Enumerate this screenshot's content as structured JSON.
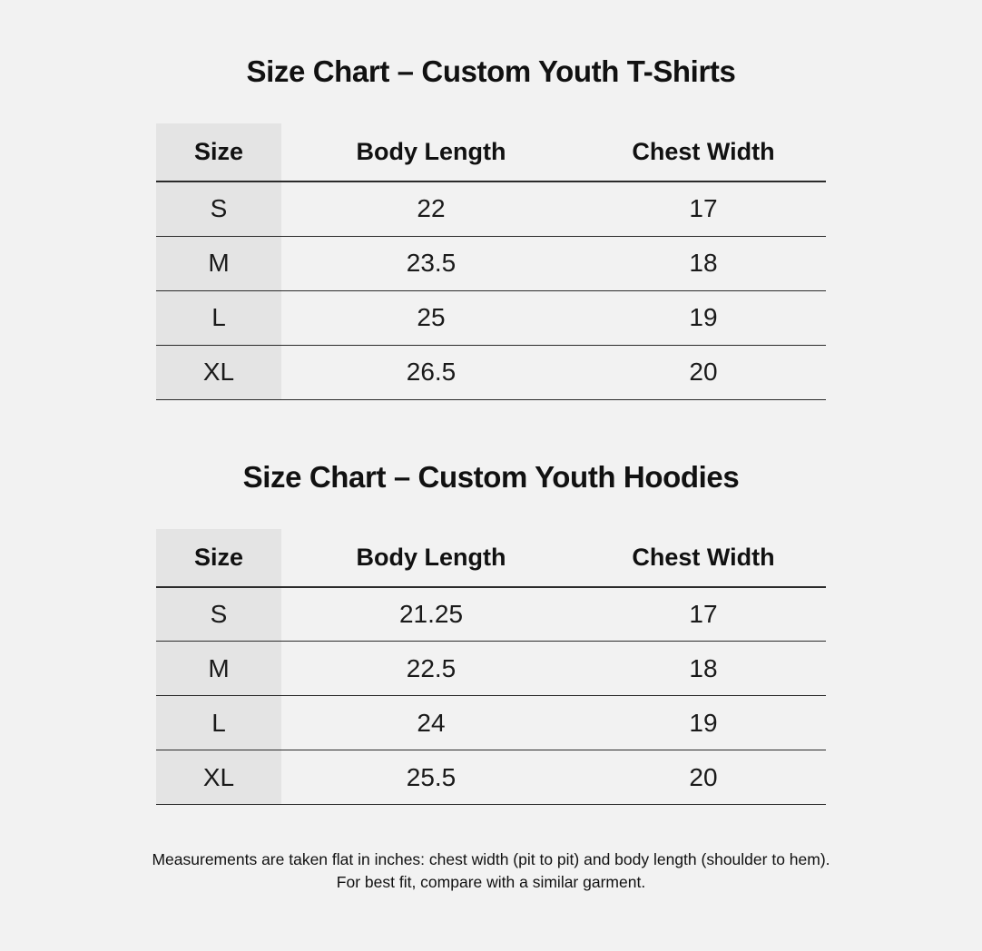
{
  "page": {
    "background_color": "#f2f2f2",
    "size_column_color": "#e4e4e4",
    "border_color": "#2b2b2b",
    "text_color": "#111111"
  },
  "footnote": {
    "line1": "Measurements are taken flat in inches: chest width (pit to pit) and body length (shoulder to hem).",
    "line2": "For best fit, compare with a similar garment."
  },
  "chart_data": [
    {
      "type": "table",
      "title": "Size Chart – Custom Youth T-Shirts",
      "columns": [
        "Size",
        "Body Length",
        "Chest Width"
      ],
      "rows": [
        [
          "S",
          "22",
          "17"
        ],
        [
          "M",
          "23.5",
          "18"
        ],
        [
          "L",
          "25",
          "19"
        ],
        [
          "XL",
          "26.5",
          "20"
        ]
      ],
      "units": "inches",
      "layout": "first column shaded, horizontal rules only"
    },
    {
      "type": "table",
      "title": "Size Chart – Custom Youth Hoodies",
      "columns": [
        "Size",
        "Body Length",
        "Chest Width"
      ],
      "rows": [
        [
          "S",
          "21.25",
          "17"
        ],
        [
          "M",
          "22.5",
          "18"
        ],
        [
          "L",
          "24",
          "19"
        ],
        [
          "XL",
          "25.5",
          "20"
        ]
      ],
      "units": "inches",
      "layout": "first column shaded, horizontal rules only"
    }
  ]
}
